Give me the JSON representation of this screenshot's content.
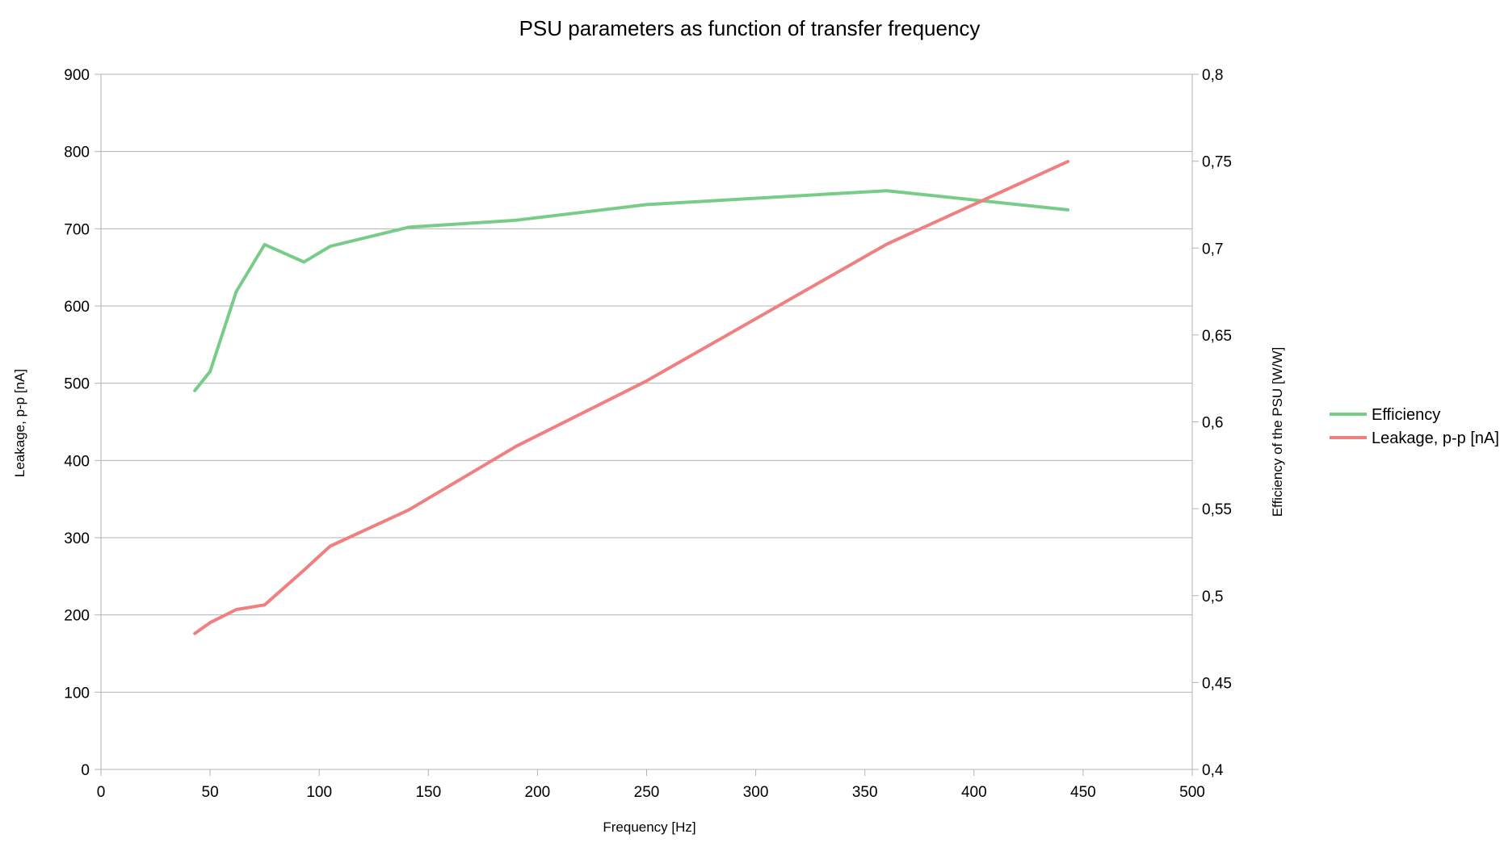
{
  "chart_data": {
    "type": "line",
    "title": "PSU parameters as function of transfer frequency",
    "xlabel": "Frequency [Hz]",
    "ylabel": "Leakage, p-p [nA]",
    "y2label": "Efficiency of the PSU [W/W]",
    "xlim": [
      0,
      500
    ],
    "ylim": [
      0,
      900
    ],
    "y2lim": [
      0.4,
      0.8
    ],
    "x_ticks": [
      "0",
      "50",
      "100",
      "150",
      "200",
      "250",
      "300",
      "350",
      "400",
      "450",
      "500"
    ],
    "y_ticks": [
      "0",
      "100",
      "200",
      "300",
      "400",
      "500",
      "600",
      "700",
      "800",
      "900"
    ],
    "y2_ticks": [
      "0,4",
      "0,45",
      "0,5",
      "0,55",
      "0,6",
      "0,65",
      "0,7",
      "0,75",
      "0,8"
    ],
    "grid": true,
    "legend_position": "right",
    "series": [
      {
        "name": "Efficiency",
        "axis": "right",
        "color": "#77cc88",
        "x": [
          43,
          50,
          62,
          75,
          93,
          105,
          141,
          190,
          250,
          360,
          443
        ],
        "values": [
          0.618,
          0.629,
          0.675,
          0.702,
          0.692,
          0.701,
          0.712,
          0.716,
          0.725,
          0.733,
          0.722
        ]
      },
      {
        "name": "Leakage, p-p [nA]",
        "axis": "left",
        "color": "#f08080",
        "x": [
          43,
          50,
          62,
          75,
          93,
          105,
          141,
          190,
          250,
          360,
          443
        ],
        "values": [
          176,
          190,
          207,
          213,
          258,
          289,
          336,
          418,
          503,
          680,
          787
        ]
      }
    ]
  }
}
